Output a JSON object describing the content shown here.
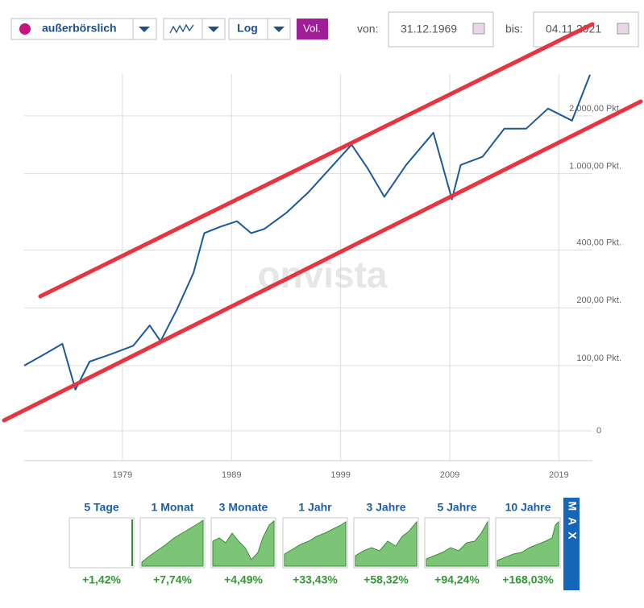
{
  "toolbar": {
    "market": "außerbörslich",
    "scale": "Log",
    "volume": "Vol.",
    "from_label": "von:",
    "from_date": "31.12.1969",
    "to_label": "bis:",
    "to_date": "04.11.2021"
  },
  "watermark": "onvista",
  "chart_data": {
    "type": "line",
    "color": "#1a5a9e",
    "log_scale": true,
    "grid": true,
    "x": [
      1970,
      1972,
      1973.5,
      1974.7,
      1976,
      1978,
      1980,
      1981.5,
      1982.5,
      1984,
      1985.5,
      1986.5,
      1988,
      1989.5,
      1990.8,
      1992,
      1994,
      1996,
      1998,
      2000,
      2001.5,
      2003,
      2005,
      2007.5,
      2009.2,
      2010,
      2012,
      2014,
      2016,
      2018,
      2020.2,
      2021.85
    ],
    "values": [
      100,
      116,
      130,
      75,
      105,
      115,
      127,
      162,
      134,
      196,
      303,
      490,
      530,
      565,
      490,
      515,
      623,
      795,
      1060,
      1414,
      1060,
      757,
      1110,
      1634,
      735,
      1110,
      1224,
      1715,
      1715,
      2183,
      1888,
      3270
    ],
    "xlim": [
      1970,
      2021.85
    ],
    "xticks": [
      1979,
      1989,
      1999,
      2009,
      2019
    ],
    "ylim": [
      32,
      3300
    ],
    "yticks": [
      {
        "value": 100,
        "label": "100,00 Pkt."
      },
      {
        "value": 200,
        "label": "200,00 Pkt."
      },
      {
        "value": 400,
        "label": "400,00 Pkt."
      },
      {
        "value": 1000,
        "label": "1.000,00 Pkt."
      },
      {
        "value": 2000,
        "label": "2.000,00 Pkt."
      }
    ],
    "y_bottom_label": "0"
  },
  "periods": [
    {
      "label": "5 Tage",
      "change": "+1,42%"
    },
    {
      "label": "1 Monat",
      "change": "+7,74%"
    },
    {
      "label": "3 Monate",
      "change": "+4,49%"
    },
    {
      "label": "1 Jahr",
      "change": "+33,43%"
    },
    {
      "label": "3 Jahre",
      "change": "+58,32%"
    },
    {
      "label": "5 Jahre",
      "change": "+94,24%"
    },
    {
      "label": "10 Jahre",
      "change": "+168,03%"
    }
  ],
  "max_button": "MAX"
}
